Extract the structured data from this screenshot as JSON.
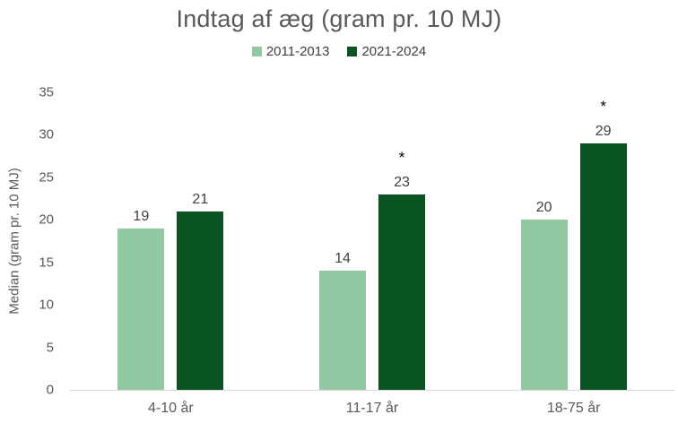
{
  "page": {
    "background": "#ffffff"
  },
  "chart_data": {
    "type": "bar",
    "title": "Indtag af æg (gram pr. 10 MJ)",
    "categories": [
      "4-10 år",
      "11-17 år",
      "18-75 år"
    ],
    "series": [
      {
        "name": "2011-2013",
        "color": "#93C9A2",
        "values": [
          19,
          14,
          20
        ],
        "starred": [
          false,
          false,
          false
        ]
      },
      {
        "name": "2021-2024",
        "color": "#0A5422",
        "values": [
          21,
          23,
          29
        ],
        "starred": [
          false,
          true,
          true
        ]
      }
    ],
    "xlabel": "",
    "ylabel": "Median (gram pr. 10 MJ)",
    "ylim": [
      0,
      35
    ],
    "yticks": [
      0,
      5,
      10,
      15,
      20,
      25,
      30,
      35
    ],
    "grid": false,
    "legend_position": "top-center",
    "significance_marker": "*"
  },
  "colors": {
    "title_text": "#595959",
    "axis_text": "#595959",
    "value_text": "#404040",
    "marker_text": "#000000",
    "axis_line": "#D9D9D9",
    "series_light_green": "#93C9A2",
    "series_dark_green": "#0A5422"
  }
}
